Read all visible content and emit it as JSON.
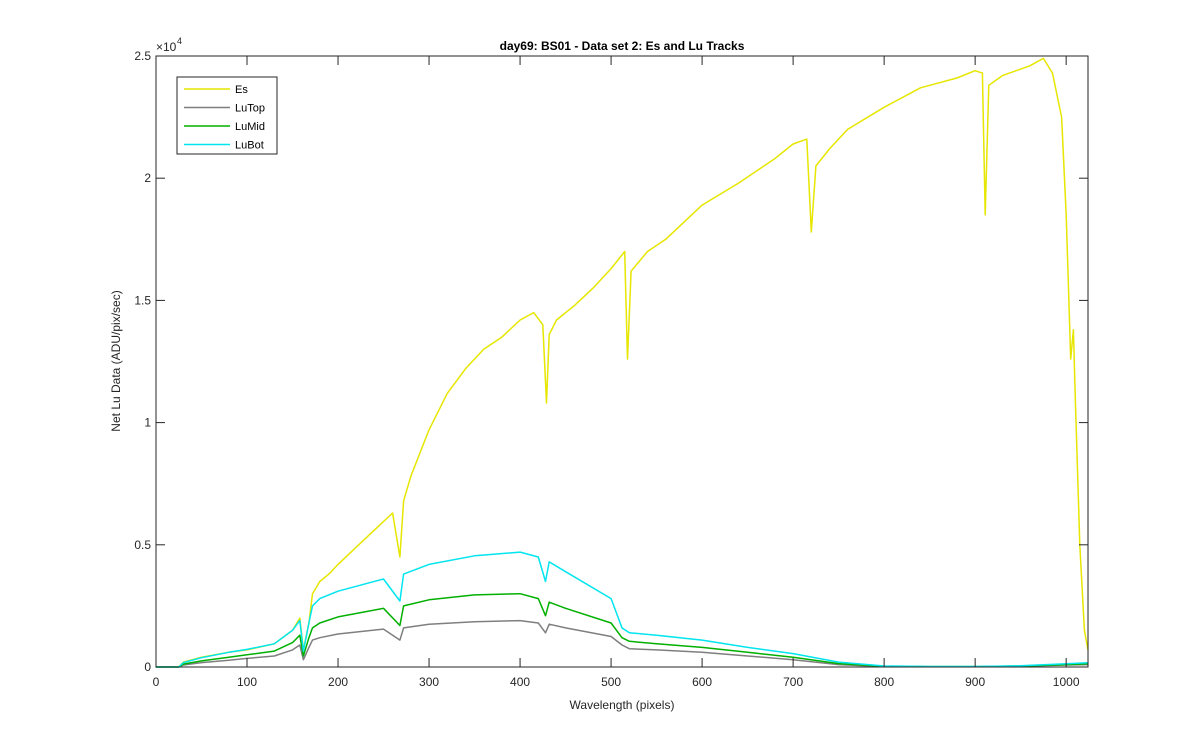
{
  "chart_data": {
    "type": "line",
    "title": "day69: BS01 - Data set 2: Es and Lu Tracks",
    "xlabel": "Wavelength (pixels)",
    "ylabel": "Net Lu Data (ADU/pix/sec)",
    "xlim": [
      0,
      1024
    ],
    "ylim": [
      0,
      25000
    ],
    "y_exponent_label": "×10",
    "y_exponent_power": "4",
    "xticks": [
      0,
      100,
      200,
      300,
      400,
      500,
      600,
      700,
      800,
      900,
      1000
    ],
    "xtick_labels": [
      "0",
      "100",
      "200",
      "300",
      "400",
      "500",
      "600",
      "700",
      "800",
      "900",
      "1000"
    ],
    "yticks": [
      0,
      5000,
      10000,
      15000,
      20000,
      25000
    ],
    "ytick_labels": [
      "0",
      "0.5",
      "1",
      "1.5",
      "2",
      "2.5"
    ],
    "legend_position": "top-left",
    "series": [
      {
        "name": "Es",
        "color": "#e6e600",
        "x": [
          0,
          25,
          30,
          50,
          80,
          100,
          130,
          150,
          158,
          162,
          168,
          172,
          180,
          190,
          200,
          220,
          240,
          260,
          268,
          272,
          280,
          300,
          320,
          340,
          360,
          380,
          400,
          415,
          425,
          429,
          432,
          440,
          460,
          480,
          500,
          515,
          518,
          522,
          540,
          560,
          600,
          640,
          680,
          700,
          715,
          720,
          725,
          740,
          760,
          800,
          840,
          880,
          900,
          908,
          911,
          915,
          930,
          960,
          975,
          985,
          995,
          1000,
          1005,
          1008,
          1010,
          1015,
          1020,
          1024
        ],
        "values": [
          0,
          0,
          200,
          400,
          600,
          700,
          950,
          1500,
          2000,
          700,
          1800,
          3000,
          3500,
          3800,
          4200,
          4900,
          5600,
          6300,
          4500,
          6800,
          7800,
          9700,
          11200,
          12200,
          13000,
          13500,
          14200,
          14500,
          14000,
          10800,
          13600,
          14200,
          14800,
          15500,
          16300,
          17000,
          12600,
          16200,
          17000,
          17500,
          18900,
          19800,
          20800,
          21400,
          21600,
          17800,
          20500,
          21200,
          22000,
          22900,
          23700,
          24100,
          24400,
          24300,
          18500,
          23800,
          24200,
          24600,
          24900,
          24300,
          22500,
          18500,
          12600,
          13800,
          11000,
          5000,
          1500,
          700
        ]
      },
      {
        "name": "LuTop",
        "color": "#7f7f7f",
        "x": [
          0,
          25,
          30,
          50,
          80,
          100,
          130,
          150,
          158,
          162,
          168,
          172,
          180,
          200,
          250,
          268,
          272,
          300,
          350,
          400,
          420,
          428,
          432,
          450,
          500,
          512,
          520,
          550,
          600,
          650,
          700,
          750,
          800,
          850,
          900,
          950,
          1000,
          1024
        ],
        "values": [
          0,
          0,
          80,
          180,
          280,
          350,
          450,
          700,
          900,
          300,
          800,
          1100,
          1200,
          1350,
          1550,
          1100,
          1600,
          1750,
          1850,
          1900,
          1800,
          1400,
          1750,
          1600,
          1250,
          900,
          750,
          700,
          600,
          450,
          300,
          100,
          20,
          10,
          10,
          30,
          80,
          100
        ]
      },
      {
        "name": "LuMid",
        "color": "#00b000",
        "x": [
          0,
          25,
          30,
          50,
          80,
          100,
          130,
          150,
          158,
          162,
          168,
          172,
          180,
          200,
          250,
          268,
          272,
          300,
          350,
          400,
          420,
          428,
          432,
          450,
          500,
          512,
          520,
          550,
          600,
          650,
          700,
          750,
          800,
          850,
          900,
          950,
          1000,
          1024
        ],
        "values": [
          0,
          0,
          120,
          250,
          400,
          500,
          650,
          1000,
          1300,
          450,
          1200,
          1600,
          1800,
          2050,
          2400,
          1700,
          2500,
          2750,
          2950,
          3000,
          2800,
          2100,
          2650,
          2400,
          1800,
          1200,
          1050,
          950,
          800,
          600,
          400,
          140,
          30,
          15,
          15,
          40,
          100,
          130
        ]
      },
      {
        "name": "LuBot",
        "color": "#00e5ee",
        "x": [
          0,
          25,
          30,
          50,
          80,
          100,
          130,
          150,
          158,
          162,
          168,
          172,
          180,
          200,
          250,
          268,
          272,
          300,
          350,
          400,
          420,
          428,
          432,
          450,
          500,
          512,
          520,
          550,
          600,
          650,
          700,
          750,
          800,
          850,
          900,
          950,
          1000,
          1024
        ],
        "values": [
          0,
          0,
          180,
          380,
          600,
          720,
          950,
          1500,
          1900,
          650,
          1800,
          2500,
          2800,
          3100,
          3600,
          2700,
          3800,
          4200,
          4550,
          4700,
          4500,
          3500,
          4300,
          3900,
          2800,
          1600,
          1400,
          1300,
          1100,
          800,
          550,
          200,
          40,
          20,
          20,
          50,
          130,
          170
        ]
      }
    ]
  }
}
